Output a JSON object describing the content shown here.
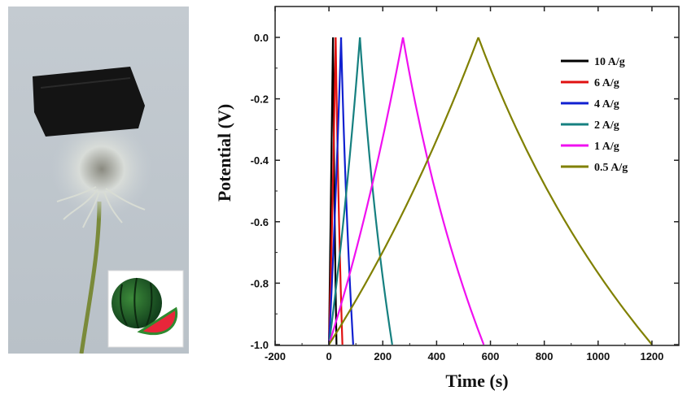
{
  "chart_data": {
    "type": "line",
    "title": "",
    "xlabel": "Time (s)",
    "ylabel": "Potential (V)",
    "xlim": [
      -200,
      1300
    ],
    "ylim": [
      -1.0,
      0.1
    ],
    "x_ticks": [
      -200,
      0,
      200,
      400,
      600,
      800,
      1000,
      1200
    ],
    "y_ticks": [
      0.0,
      -0.2,
      -0.4,
      -0.6,
      -0.8,
      -1.0
    ],
    "x_tick_labels": [
      "-200",
      "0",
      "200",
      "400",
      "600",
      "800",
      "1000",
      "1200"
    ],
    "y_tick_labels": [
      "0.0",
      "-0.2",
      "-0.4",
      "-0.6",
      "-0.8",
      "-1.0"
    ],
    "legend_position": "top-right",
    "series": [
      {
        "name": "10 A/g",
        "color": "#000000",
        "charge": [
          [
            0,
            -1.0
          ],
          [
            15,
            0.0
          ]
        ],
        "discharge": [
          [
            15,
            0.0
          ],
          [
            28,
            -1.0
          ]
        ]
      },
      {
        "name": "6 A/g",
        "color": "#e01010",
        "charge": [
          [
            0,
            -1.0
          ],
          [
            25,
            0.0
          ]
        ],
        "discharge": [
          [
            25,
            0.0
          ],
          [
            50,
            -1.0
          ]
        ]
      },
      {
        "name": "4 A/g",
        "color": "#1020d0",
        "charge": [
          [
            0,
            -1.0
          ],
          [
            45,
            0.0
          ]
        ],
        "discharge": [
          [
            45,
            0.0
          ],
          [
            90,
            -1.0
          ]
        ]
      },
      {
        "name": "2 A/g",
        "color": "#168080",
        "charge": [
          [
            0,
            -1.0
          ],
          [
            115,
            0.0
          ]
        ],
        "discharge": [
          [
            115,
            0.0
          ],
          [
            235,
            -1.0
          ]
        ]
      },
      {
        "name": "1 A/g",
        "color": "#f010f0",
        "charge": [
          [
            0,
            -1.0
          ],
          [
            275,
            0.0
          ]
        ],
        "discharge": [
          [
            275,
            0.0
          ],
          [
            575,
            -1.0
          ]
        ]
      },
      {
        "name": "0.5 A/g",
        "color": "#808000",
        "charge": [
          [
            0,
            -1.0
          ],
          [
            555,
            0.0
          ]
        ],
        "discharge": [
          [
            555,
            0.0
          ],
          [
            1200,
            -1.0
          ]
        ]
      }
    ]
  }
}
